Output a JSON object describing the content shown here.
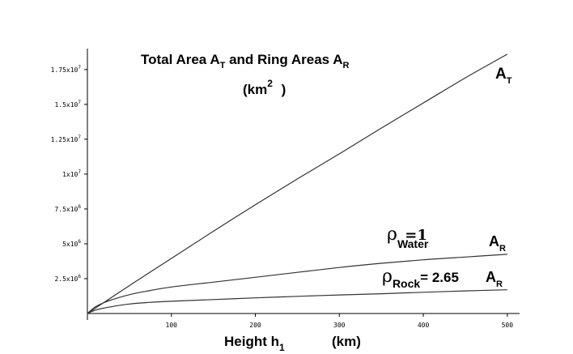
{
  "chart_data": {
    "type": "line",
    "title_line1": {
      "main": "Total Area A",
      "sub1": "T",
      "mid": " and Ring Areas A",
      "sub2": "R"
    },
    "title_line2": {
      "main": "(km",
      "sup": "2",
      "end": " )"
    },
    "xlabel": {
      "main": "Height  h",
      "sub": "1",
      "unit": "(km)"
    },
    "xlim": [
      0,
      505
    ],
    "ylim": [
      0,
      19000000
    ],
    "x_ticks": [
      100,
      200,
      300,
      400,
      500
    ],
    "x_tick_labels": [
      "100",
      "200",
      "300",
      "400",
      "500"
    ],
    "y_ticks": [
      2500000,
      5000000,
      7500000,
      10000000,
      12500000,
      15000000,
      17500000
    ],
    "y_tick_labels": [
      {
        "main": "2.5x10",
        "exp": "6"
      },
      {
        "main": "5x10",
        "exp": "6"
      },
      {
        "main": "7.5x10",
        "exp": "6"
      },
      {
        "main": "1x10",
        "exp": "7"
      },
      {
        "main": "1.25x10",
        "exp": "7"
      },
      {
        "main": "1.5x10",
        "exp": "7"
      },
      {
        "main": "1.75x10",
        "exp": "7"
      }
    ],
    "series": [
      {
        "x": [
          0,
          50,
          100,
          150,
          200,
          250,
          300,
          350,
          400,
          450,
          500
        ],
        "values": [
          0,
          2000000,
          3950000,
          5900000,
          7800000,
          9650000,
          11450000,
          13300000,
          15100000,
          16900000,
          18600000
        ],
        "label": {
          "main": "A",
          "sub": "T"
        }
      },
      {
        "x": [
          0,
          10,
          25,
          50,
          75,
          100,
          150,
          200,
          250,
          300,
          350,
          400,
          450,
          500
        ],
        "values": [
          0,
          500000,
          900000,
          1350000,
          1650000,
          1900000,
          2250000,
          2600000,
          2950000,
          3300000,
          3600000,
          3850000,
          4050000,
          4250000
        ],
        "label": {
          "main": "A",
          "sub": "R"
        },
        "annotation": {
          "rho": "ρ",
          "sub": "Water",
          "value": " =1"
        }
      },
      {
        "x": [
          0,
          10,
          25,
          50,
          75,
          100,
          150,
          200,
          250,
          300,
          350,
          400,
          450,
          500
        ],
        "values": [
          0,
          250000,
          450000,
          680000,
          800000,
          880000,
          1000000,
          1120000,
          1230000,
          1330000,
          1420000,
          1520000,
          1620000,
          1700000
        ],
        "label": {
          "main": "A",
          "sub": "R"
        },
        "annotation": {
          "rho": "ρ",
          "sub": "Rock",
          "value": "= 2.65"
        }
      }
    ]
  }
}
